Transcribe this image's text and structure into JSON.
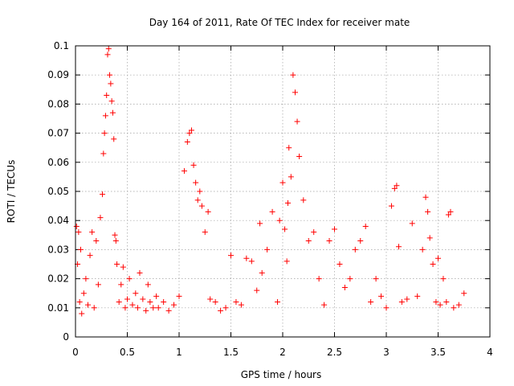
{
  "chart_data": {
    "type": "scatter",
    "title": "Day 164 of 2011, Rate Of TEC Index for receiver mate",
    "xlabel": "GPS time / hours",
    "ylabel": "ROTI / TECUs",
    "xlim": [
      0,
      4
    ],
    "ylim": [
      0,
      0.1
    ],
    "xticks": [
      0,
      0.5,
      1,
      1.5,
      2,
      2.5,
      3,
      3.5,
      4
    ],
    "xtick_labels": [
      "0",
      "0.5",
      "1",
      "1.5",
      "2",
      "2.5",
      "3",
      "3.5",
      "4"
    ],
    "yticks": [
      0,
      0.01,
      0.02,
      0.03,
      0.04,
      0.05,
      0.06,
      0.07,
      0.08,
      0.09,
      0.1
    ],
    "ytick_labels": [
      "0",
      "0.01",
      "0.02",
      "0.03",
      "0.04",
      "0.05",
      "0.06",
      "0.07",
      "0.08",
      "0.09",
      "0.1"
    ],
    "grid": true,
    "marker": "+",
    "color": "#ff0000",
    "series": [
      {
        "name": "ROTI",
        "x": [
          0.01,
          0.02,
          0.03,
          0.04,
          0.05,
          0.06,
          0.08,
          0.1,
          0.12,
          0.14,
          0.16,
          0.18,
          0.2,
          0.22,
          0.24,
          0.26,
          0.27,
          0.28,
          0.29,
          0.3,
          0.31,
          0.32,
          0.33,
          0.34,
          0.35,
          0.36,
          0.37,
          0.38,
          0.39,
          0.4,
          0.42,
          0.44,
          0.46,
          0.48,
          0.5,
          0.52,
          0.55,
          0.58,
          0.6,
          0.62,
          0.65,
          0.68,
          0.7,
          0.72,
          0.75,
          0.78,
          0.8,
          0.85,
          0.9,
          0.95,
          1.0,
          1.05,
          1.08,
          1.1,
          1.12,
          1.14,
          1.16,
          1.18,
          1.2,
          1.22,
          1.25,
          1.28,
          1.3,
          1.35,
          1.4,
          1.45,
          1.5,
          1.55,
          1.6,
          1.65,
          1.7,
          1.75,
          1.78,
          1.8,
          1.85,
          1.9,
          1.95,
          1.97,
          2.0,
          2.02,
          2.04,
          2.05,
          2.06,
          2.08,
          2.1,
          2.12,
          2.14,
          2.16,
          2.2,
          2.25,
          2.3,
          2.35,
          2.4,
          2.45,
          2.5,
          2.55,
          2.6,
          2.65,
          2.7,
          2.75,
          2.8,
          2.85,
          2.9,
          2.95,
          3.0,
          3.05,
          3.08,
          3.1,
          3.12,
          3.15,
          3.2,
          3.25,
          3.3,
          3.35,
          3.38,
          3.4,
          3.42,
          3.45,
          3.48,
          3.5,
          3.52,
          3.55,
          3.58,
          3.6,
          3.62,
          3.65,
          3.7,
          3.75
        ],
        "y": [
          0.038,
          0.025,
          0.036,
          0.012,
          0.03,
          0.008,
          0.015,
          0.02,
          0.011,
          0.028,
          0.036,
          0.01,
          0.033,
          0.018,
          0.041,
          0.049,
          0.063,
          0.07,
          0.076,
          0.083,
          0.097,
          0.099,
          0.09,
          0.087,
          0.081,
          0.077,
          0.068,
          0.035,
          0.033,
          0.025,
          0.012,
          0.018,
          0.024,
          0.01,
          0.013,
          0.02,
          0.011,
          0.015,
          0.01,
          0.022,
          0.013,
          0.009,
          0.018,
          0.012,
          0.01,
          0.014,
          0.01,
          0.012,
          0.009,
          0.011,
          0.014,
          0.057,
          0.067,
          0.07,
          0.071,
          0.059,
          0.053,
          0.047,
          0.05,
          0.045,
          0.036,
          0.043,
          0.013,
          0.012,
          0.009,
          0.01,
          0.028,
          0.012,
          0.011,
          0.027,
          0.026,
          0.016,
          0.039,
          0.022,
          0.03,
          0.043,
          0.012,
          0.04,
          0.053,
          0.037,
          0.026,
          0.046,
          0.065,
          0.055,
          0.09,
          0.084,
          0.074,
          0.062,
          0.047,
          0.033,
          0.036,
          0.02,
          0.011,
          0.033,
          0.037,
          0.025,
          0.017,
          0.02,
          0.03,
          0.033,
          0.038,
          0.012,
          0.02,
          0.014,
          0.01,
          0.045,
          0.051,
          0.052,
          0.031,
          0.012,
          0.013,
          0.039,
          0.014,
          0.03,
          0.048,
          0.043,
          0.034,
          0.025,
          0.012,
          0.027,
          0.011,
          0.02,
          0.012,
          0.042,
          0.043,
          0.01,
          0.011,
          0.015
        ]
      }
    ]
  }
}
